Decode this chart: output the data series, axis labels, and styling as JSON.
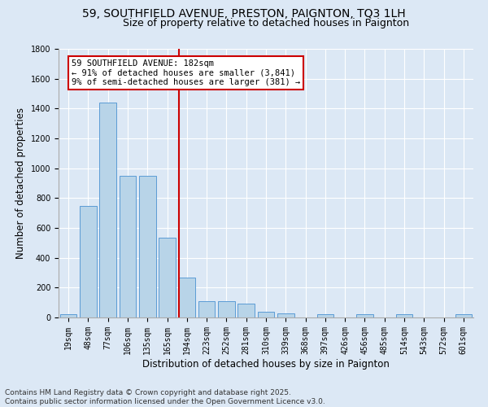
{
  "title": "59, SOUTHFIELD AVENUE, PRESTON, PAIGNTON, TQ3 1LH",
  "subtitle": "Size of property relative to detached houses in Paignton",
  "xlabel": "Distribution of detached houses by size in Paignton",
  "ylabel": "Number of detached properties",
  "categories": [
    "19sqm",
    "48sqm",
    "77sqm",
    "106sqm",
    "135sqm",
    "165sqm",
    "194sqm",
    "223sqm",
    "252sqm",
    "281sqm",
    "310sqm",
    "339sqm",
    "368sqm",
    "397sqm",
    "426sqm",
    "456sqm",
    "485sqm",
    "514sqm",
    "543sqm",
    "572sqm",
    "601sqm"
  ],
  "values": [
    20,
    750,
    1440,
    950,
    950,
    535,
    270,
    110,
    110,
    95,
    40,
    27,
    0,
    20,
    0,
    20,
    0,
    20,
    0,
    0,
    20
  ],
  "bar_color": "#b8d4e8",
  "bar_edge_color": "#5b9bd5",
  "vline_x_index": 6,
  "vline_color": "#cc0000",
  "annotation_text": "59 SOUTHFIELD AVENUE: 182sqm\n← 91% of detached houses are smaller (3,841)\n9% of semi-detached houses are larger (381) →",
  "annotation_box_color": "#cc0000",
  "ylim": [
    0,
    1800
  ],
  "yticks": [
    0,
    200,
    400,
    600,
    800,
    1000,
    1200,
    1400,
    1600,
    1800
  ],
  "background_color": "#dce8f5",
  "grid_color": "#ffffff",
  "footer": "Contains HM Land Registry data © Crown copyright and database right 2025.\nContains public sector information licensed under the Open Government Licence v3.0.",
  "title_fontsize": 10,
  "subtitle_fontsize": 9,
  "ylabel_fontsize": 8.5,
  "xlabel_fontsize": 8.5,
  "tick_fontsize": 7,
  "footer_fontsize": 6.5,
  "annotation_fontsize": 7.5
}
